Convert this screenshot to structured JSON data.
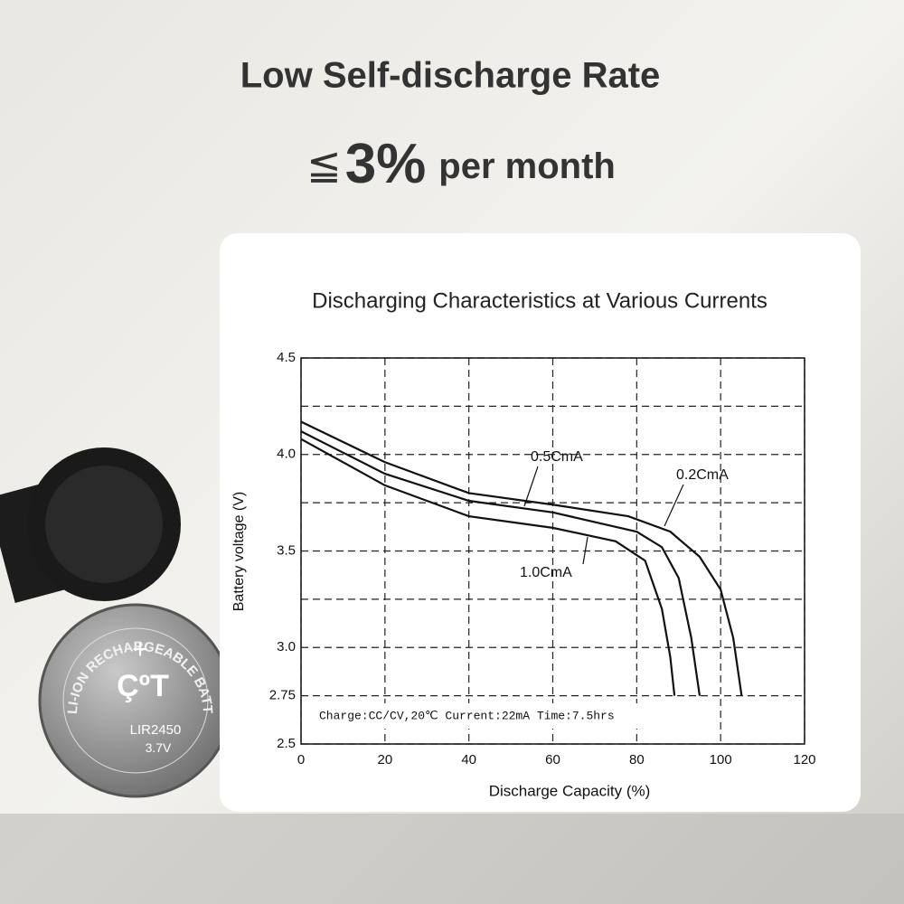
{
  "header": {
    "title": "Low Self-discharge Rate",
    "symbol": "≦",
    "value": "3%",
    "unit": "per month"
  },
  "battery": {
    "ring_text": "LI-ION RECHARGEABLE BATTERY",
    "plus": "+",
    "logo": "ÇºT",
    "model": "LIR2450",
    "voltage": "3.7V"
  },
  "chart_data": {
    "type": "line",
    "title": "Discharging Characteristics at Various Currents",
    "x_label": "Discharge Capacity (%)",
    "y_label": "Battery voltage (V)",
    "annotation": "Charge:CC/CV,20℃ Current:22mA Time:7.5hrs",
    "xlim": [
      0,
      120
    ],
    "xticks": [
      0,
      20,
      40,
      60,
      80,
      100,
      120
    ],
    "ylim": [
      2.5,
      4.5
    ],
    "yticks": [
      2.5,
      {
        "value": 2.75,
        "label": "2.75"
      },
      {
        "value": 3,
        "label": "3.0"
      },
      {
        "value": 3.25,
        "label": null
      },
      3.5,
      {
        "value": 3.75,
        "label": null
      },
      {
        "value": 4,
        "label": "4.0"
      },
      {
        "value": 4.25,
        "label": null
      },
      4.5
    ],
    "grid": true,
    "series": [
      {
        "name": "0.2CmA",
        "color": "#111111",
        "x": [
          0,
          20,
          40,
          60,
          78,
          88,
          95,
          100,
          103,
          105
        ],
        "values": [
          4.17,
          3.96,
          3.8,
          3.74,
          3.68,
          3.6,
          3.47,
          3.3,
          3.05,
          2.75
        ]
      },
      {
        "name": "0.5CmA",
        "color": "#111111",
        "x": [
          0,
          20,
          40,
          60,
          80,
          86,
          90,
          93,
          95
        ],
        "values": [
          4.12,
          3.9,
          3.76,
          3.7,
          3.6,
          3.52,
          3.36,
          3.05,
          2.75
        ]
      },
      {
        "name": "1.0CmA",
        "color": "#111111",
        "x": [
          0,
          20,
          40,
          60,
          75,
          82,
          86,
          88,
          89
        ],
        "values": [
          4.08,
          3.84,
          3.68,
          3.62,
          3.55,
          3.45,
          3.2,
          2.95,
          2.75
        ]
      }
    ]
  }
}
